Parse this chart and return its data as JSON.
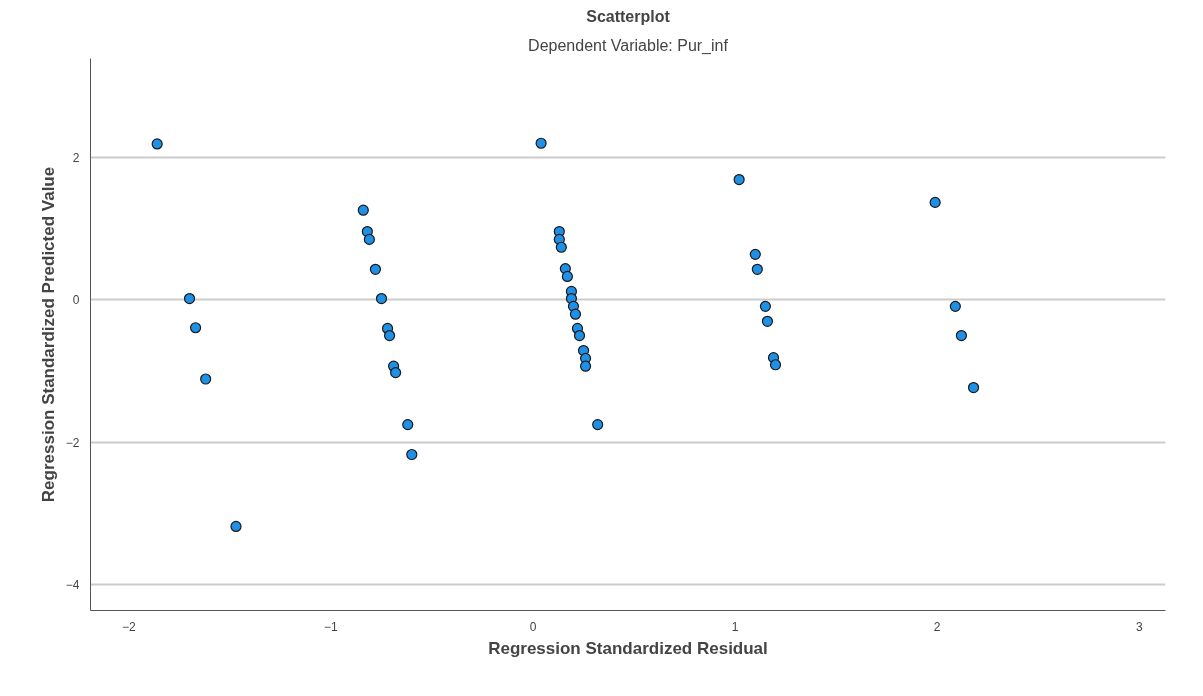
{
  "chart_data": {
    "type": "scatter",
    "title": "Scatterplot",
    "subtitle": "Dependent Variable: Pur_inf",
    "xlabel": "Regression Standardized Residual",
    "ylabel": "Regression Standardized Predicted Value",
    "x": [
      -1.86,
      -1.7,
      -1.67,
      -1.62,
      -1.47,
      -0.84,
      -0.82,
      -0.81,
      -0.78,
      -0.75,
      -0.72,
      -0.71,
      -0.69,
      -0.68,
      -0.62,
      -0.6,
      0.04,
      0.13,
      0.13,
      0.14,
      0.16,
      0.17,
      0.19,
      0.19,
      0.2,
      0.21,
      0.22,
      0.23,
      0.25,
      0.26,
      0.26,
      0.32,
      1.02,
      1.1,
      1.11,
      1.15,
      1.16,
      1.19,
      1.2,
      1.99,
      2.09,
      2.12,
      2.18
    ],
    "series": [
      {
        "color": "#1e90e6",
        "values": [
          2.19,
          0.02,
          -0.39,
          -1.11,
          -3.18,
          1.26,
          0.96,
          0.85,
          0.43,
          0.02,
          -0.4,
          -0.5,
          -0.93,
          -1.02,
          -1.75,
          -2.17,
          2.2,
          0.96,
          0.85,
          0.74,
          0.44,
          0.33,
          0.12,
          0.02,
          -0.09,
          -0.2,
          -0.4,
          -0.5,
          -0.71,
          -0.82,
          -0.93,
          -1.75,
          1.69,
          0.64,
          0.43,
          -0.09,
          -0.3,
          -0.81,
          -0.91,
          1.37,
          -0.09,
          -0.5,
          -1.23
        ]
      }
    ],
    "xlim": [
      -2.19,
      3.13
    ],
    "ylim": [
      -4.36,
      3.39
    ],
    "xticks": [
      -2,
      -1,
      0,
      1,
      2,
      3
    ],
    "yticks": [
      -4,
      -2,
      0,
      2
    ],
    "grid": "y",
    "marker": "circle"
  }
}
